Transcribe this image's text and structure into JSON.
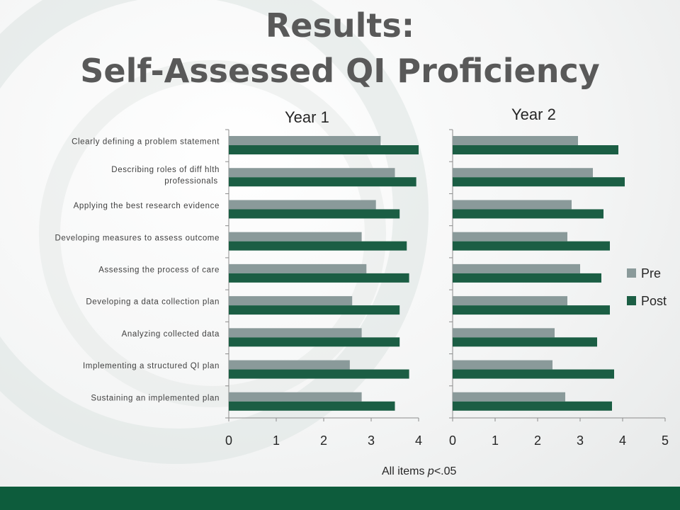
{
  "slide": {
    "title_line1": "Results:",
    "title_line2": "Self-Assessed QI Proficiency",
    "footnote_pre": "All items ",
    "footnote_p": "p",
    "footnote_post": "<.05"
  },
  "colors": {
    "pre": "#8a9a9a",
    "post": "#1b5e44",
    "footer_bar": "#0d5c3c"
  },
  "chart_data": [
    {
      "type": "bar",
      "orientation": "horizontal",
      "title": "Year 1",
      "categories": [
        "Clearly defining a problem statement",
        "Describing roles of diff hlth professionals",
        "Applying the best research evidence",
        "Developing measures to assess outcome",
        "Assessing the process of care",
        "Developing a data collection plan",
        "Analyzing collected data",
        "Implementing a structured QI plan",
        "Sustaining an implemented plan"
      ],
      "series": [
        {
          "name": "Pre",
          "values": [
            3.2,
            3.5,
            3.1,
            2.8,
            2.9,
            2.6,
            2.8,
            2.55,
            2.8
          ]
        },
        {
          "name": "Post",
          "values": [
            4.0,
            3.95,
            3.6,
            3.75,
            3.8,
            3.6,
            3.6,
            3.8,
            3.5
          ]
        }
      ],
      "xlim": [
        0,
        4
      ],
      "xticks": [
        "0",
        "1",
        "2",
        "3",
        "4"
      ],
      "grid": false
    },
    {
      "type": "bar",
      "orientation": "horizontal",
      "title": "Year 2",
      "categories": [
        "Clearly defining a problem statement",
        "Describing roles of diff hlth professionals",
        "Applying the best research evidence",
        "Developing measures to assess outcome",
        "Assessing the process of care",
        "Developing a data collection plan",
        "Analyzing collected data",
        "Implementing a structured QI plan",
        "Sustaining an implemented plan"
      ],
      "series": [
        {
          "name": "Pre",
          "values": [
            2.95,
            3.3,
            2.8,
            2.7,
            3.0,
            2.7,
            2.4,
            2.35,
            2.65
          ]
        },
        {
          "name": "Post",
          "values": [
            3.9,
            4.05,
            3.55,
            3.7,
            3.5,
            3.7,
            3.4,
            3.8,
            3.75
          ]
        }
      ],
      "xlim": [
        0,
        5
      ],
      "xticks": [
        "0",
        "1",
        "2",
        "3",
        "4",
        "5"
      ],
      "grid": false,
      "legend": {
        "placement": "right",
        "entries": [
          "Pre",
          "Post"
        ]
      }
    }
  ]
}
